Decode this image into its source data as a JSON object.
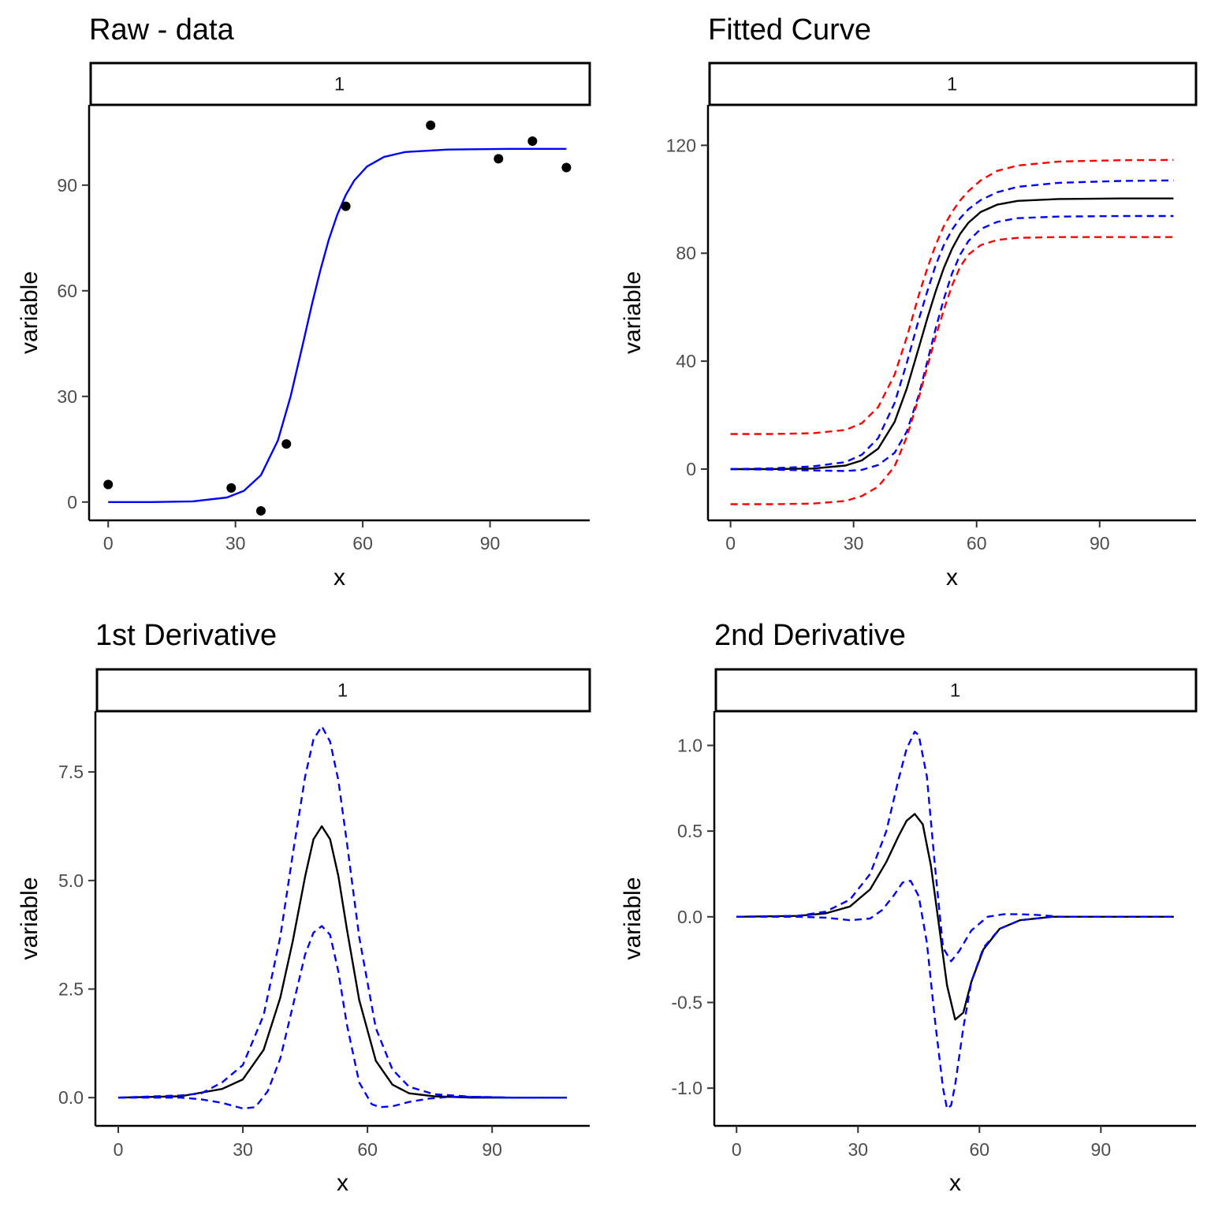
{
  "colors": {
    "fit": "#000000",
    "raw_fit": "#0000ff",
    "ci": "#0000ff",
    "pi": "#ff0000",
    "points": "#000000"
  },
  "chart_data": [
    {
      "type": "scatter",
      "title": "Raw - data",
      "strip": "1",
      "xlabel": "x",
      "ylabel": "variable",
      "xlim": [
        -4.5,
        113.5
      ],
      "ylim": [
        -5.2,
        112.8
      ],
      "xticks": [
        0,
        30,
        60,
        90
      ],
      "yticks": [
        0,
        30,
        60,
        90
      ],
      "points": {
        "x": [
          0,
          29,
          36,
          42,
          56,
          76,
          92,
          100,
          108
        ],
        "y": [
          5,
          4,
          -2.5,
          16.5,
          84,
          107,
          97.5,
          102.5,
          95
        ]
      },
      "curves": [
        {
          "style": "solid",
          "color": "raw_fit",
          "x": [
            0,
            10,
            20,
            28,
            32,
            36,
            40,
            43,
            46,
            48,
            50,
            52,
            54,
            56,
            58,
            61,
            65,
            70,
            80,
            95,
            108
          ],
          "y": [
            0,
            0,
            0.2,
            1.3,
            3.2,
            7.6,
            17.5,
            30,
            45.5,
            56,
            65.8,
            74.5,
            81.6,
            87.2,
            91.3,
            95.3,
            98,
            99.4,
            100.1,
            100.3,
            100.3
          ]
        }
      ]
    },
    {
      "type": "line",
      "title": "Fitted Curve",
      "strip": "1",
      "xlabel": "x",
      "ylabel": "variable",
      "xlim": [
        -5.5,
        113.5
      ],
      "ylim": [
        -19,
        135
      ],
      "xticks": [
        0,
        30,
        60,
        90
      ],
      "yticks": [
        0,
        40,
        80,
        120
      ],
      "curves": [
        {
          "style": "solid",
          "color": "fit",
          "x": [
            0,
            10,
            20,
            28,
            32,
            36,
            40,
            43,
            46,
            48,
            50,
            52,
            54,
            56,
            58,
            61,
            65,
            70,
            80,
            95,
            108
          ],
          "y": [
            0,
            0,
            0.2,
            1.3,
            3.2,
            7.6,
            17.5,
            30,
            45.5,
            56,
            65.8,
            74.5,
            81.6,
            87.2,
            91.3,
            95.3,
            98,
            99.4,
            100.1,
            100.3,
            100.3
          ]
        },
        {
          "style": "dashed",
          "color": "ci",
          "x": [
            0,
            10,
            20,
            28,
            32,
            36,
            40,
            43,
            46,
            48,
            50,
            52,
            54,
            56,
            58,
            61,
            65,
            70,
            80,
            95,
            108
          ],
          "y": [
            0,
            0.3,
            1,
            2.6,
            5.3,
            11.5,
            24.5,
            39.5,
            56,
            66,
            75.5,
            83,
            88.7,
            93,
            96.3,
            99.7,
            102.6,
            104.6,
            106.1,
            106.8,
            107
          ]
        },
        {
          "style": "dashed",
          "color": "ci",
          "x": [
            0,
            10,
            20,
            28,
            32,
            36,
            40,
            43,
            46,
            48,
            50,
            52,
            54,
            56,
            58,
            61,
            65,
            70,
            80,
            95,
            108
          ],
          "y": [
            0,
            -0.2,
            -0.5,
            -0.7,
            -0.3,
            1.5,
            6,
            14,
            28,
            40,
            52,
            63,
            72.5,
            79.5,
            84.5,
            89,
            91.6,
            93,
            93.6,
            93.8,
            93.8
          ]
        },
        {
          "style": "dashed",
          "color": "pi",
          "x": [
            0,
            10,
            20,
            28,
            32,
            36,
            40,
            43,
            46,
            48,
            50,
            52,
            54,
            56,
            58,
            61,
            65,
            70,
            80,
            95,
            108
          ],
          "y": [
            13,
            13,
            13.3,
            14.5,
            17,
            23,
            35,
            49,
            65,
            74.5,
            83,
            90,
            95.3,
            99.6,
            103,
            107,
            110.5,
            112.5,
            114,
            114.5,
            114.6
          ]
        },
        {
          "style": "dashed",
          "color": "pi",
          "x": [
            0,
            10,
            20,
            28,
            32,
            36,
            40,
            43,
            46,
            48,
            50,
            52,
            54,
            56,
            58,
            61,
            65,
            70,
            80,
            95,
            108
          ],
          "y": [
            -13,
            -13,
            -12.8,
            -11.8,
            -10,
            -6.5,
            1,
            12,
            27,
            38,
            49,
            59,
            68,
            75,
            79.5,
            83,
            84.9,
            85.7,
            86,
            86,
            86
          ]
        }
      ]
    },
    {
      "type": "line",
      "title": "1st Derivative",
      "strip": "1",
      "xlabel": "x",
      "ylabel": "variable",
      "xlim": [
        -5.5,
        113.5
      ],
      "ylim": [
        -0.65,
        8.9
      ],
      "xticks": [
        0,
        30,
        60,
        90
      ],
      "yticks": [
        0.0,
        2.5,
        5.0,
        7.5
      ],
      "ytick_labels": [
        "0.0",
        "2.5",
        "5.0",
        "7.5"
      ],
      "curves": [
        {
          "style": "solid",
          "color": "fit",
          "x": [
            0,
            15,
            25,
            30,
            35,
            39,
            42,
            45,
            47,
            49,
            51,
            53,
            55,
            58,
            62,
            66,
            70,
            76,
            85,
            95,
            108
          ],
          "y": [
            0,
            0.03,
            0.2,
            0.42,
            1.1,
            2.3,
            3.6,
            5.1,
            5.95,
            6.25,
            5.95,
            5.1,
            3.9,
            2.25,
            0.85,
            0.3,
            0.1,
            0.03,
            0,
            0,
            0
          ]
        },
        {
          "style": "dashed",
          "color": "ci",
          "x": [
            0,
            15,
            20,
            25,
            30,
            35,
            39,
            42,
            45,
            47,
            49,
            51,
            53,
            55,
            58,
            62,
            66,
            70,
            76,
            85,
            95,
            108
          ],
          "y": [
            0,
            0.05,
            0.1,
            0.35,
            0.75,
            1.9,
            3.7,
            5.6,
            7.4,
            8.25,
            8.55,
            8.2,
            7.3,
            5.9,
            3.7,
            1.6,
            0.65,
            0.25,
            0.08,
            0.02,
            0,
            0
          ]
        },
        {
          "style": "dashed",
          "color": "ci",
          "x": [
            0,
            15,
            20,
            25,
            30,
            33,
            36,
            39,
            42,
            45,
            47,
            49,
            51,
            53,
            55,
            58,
            61,
            63,
            66,
            70,
            75,
            80,
            85,
            95,
            108
          ],
          "y": [
            0,
            0,
            -0.04,
            -0.12,
            -0.25,
            -0.22,
            0.15,
            0.9,
            2.1,
            3.3,
            3.8,
            3.95,
            3.75,
            2.9,
            1.7,
            0.35,
            -0.15,
            -0.22,
            -0.2,
            -0.1,
            -0.02,
            0.02,
            0.02,
            0,
            0
          ]
        }
      ]
    },
    {
      "type": "line",
      "title": "2nd Derivative",
      "strip": "1",
      "xlabel": "x",
      "ylabel": "variable",
      "xlim": [
        -5.5,
        113.5
      ],
      "ylim": [
        -1.22,
        1.2
      ],
      "xticks": [
        0,
        30,
        60,
        90
      ],
      "yticks": [
        -1.0,
        -0.5,
        0.0,
        0.5,
        1.0
      ],
      "ytick_labels": [
        "-1.0",
        "-0.5",
        "0.0",
        "0.5",
        "1.0"
      ],
      "curves": [
        {
          "style": "solid",
          "color": "fit",
          "x": [
            0,
            15,
            22,
            28,
            33,
            37,
            40,
            42,
            44,
            46,
            48,
            50,
            52,
            54,
            56,
            58,
            61,
            65,
            70,
            78,
            90,
            108
          ],
          "y": [
            0,
            0.005,
            0.02,
            0.06,
            0.16,
            0.32,
            0.47,
            0.56,
            0.6,
            0.54,
            0.3,
            -0.05,
            -0.4,
            -0.6,
            -0.56,
            -0.38,
            -0.19,
            -0.07,
            -0.02,
            0,
            0,
            0
          ]
        },
        {
          "style": "dashed",
          "color": "ci",
          "x": [
            0,
            15,
            22,
            28,
            33,
            37,
            40,
            42,
            44,
            45,
            47,
            49,
            51,
            53,
            55,
            58,
            62,
            66,
            70,
            75,
            80,
            90,
            108
          ],
          "y": [
            0,
            0.005,
            0.03,
            0.1,
            0.25,
            0.5,
            0.8,
            0.98,
            1.08,
            1.06,
            0.82,
            0.3,
            -0.18,
            -0.26,
            -0.2,
            -0.08,
            0,
            0.015,
            0.015,
            0.01,
            0,
            0,
            0
          ]
        },
        {
          "style": "dashed",
          "color": "ci",
          "x": [
            0,
            15,
            22,
            28,
            33,
            36,
            39,
            41,
            43,
            45,
            47,
            49,
            51,
            52,
            53,
            54,
            56,
            58,
            61,
            65,
            70,
            78,
            90,
            108
          ],
          "y": [
            0,
            0,
            -0.005,
            -0.02,
            -0.01,
            0.04,
            0.13,
            0.2,
            0.21,
            0.12,
            -0.15,
            -0.6,
            -1.0,
            -1.12,
            -1.1,
            -0.98,
            -0.65,
            -0.38,
            -0.18,
            -0.07,
            -0.02,
            0,
            0,
            0
          ]
        }
      ]
    }
  ]
}
